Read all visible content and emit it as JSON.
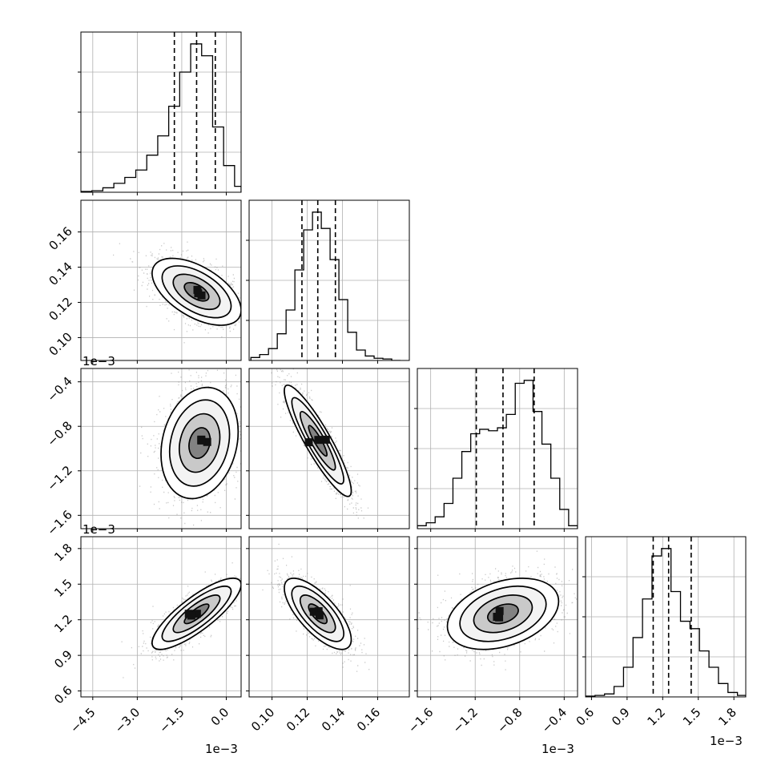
{
  "chart_data": {
    "type": "corner",
    "grid": true,
    "offset_label": "1e−3",
    "parameters": [
      {
        "ticks": [
          "−4.5",
          "−3.0",
          "−1.5",
          "0.0"
        ],
        "tick_values": [
          -4.5,
          -3.0,
          -1.5,
          0.0
        ],
        "range": [
          -4.9,
          0.5
        ]
      },
      {
        "ticks": [
          "0.10",
          "0.12",
          "0.14",
          "0.16"
        ],
        "tick_values": [
          0.1,
          0.12,
          0.14,
          0.16
        ],
        "range": [
          0.087,
          0.178
        ]
      },
      {
        "ticks": [
          "−1.6",
          "−1.2",
          "−0.8",
          "−0.4"
        ],
        "tick_values": [
          -1.6,
          -1.2,
          -0.8,
          -0.4
        ],
        "range": [
          -1.72,
          -0.28
        ]
      },
      {
        "ticks": [
          "0.6",
          "0.9",
          "1.2",
          "1.5",
          "1.8"
        ],
        "tick_values": [
          0.6,
          0.9,
          1.2,
          1.5,
          1.8
        ],
        "range": [
          0.55,
          1.9
        ]
      }
    ],
    "histograms": [
      {
        "param": 0,
        "quantiles": [
          -1.75,
          -1.0,
          -0.37
        ],
        "bins": [
          -4.9,
          -4.53,
          -4.16,
          -3.79,
          -3.42,
          -3.05,
          -2.68,
          -2.31,
          -1.94,
          -1.57,
          -1.2,
          -0.83,
          -0.46,
          -0.09,
          0.28,
          0.5
        ],
        "counts": [
          0.005,
          0.01,
          0.03,
          0.06,
          0.1,
          0.15,
          0.25,
          0.38,
          0.58,
          0.81,
          1.0,
          0.92,
          0.44,
          0.18,
          0.04
        ]
      },
      {
        "param": 1,
        "quantiles": [
          0.117,
          0.126,
          0.136
        ],
        "bins": [
          0.088,
          0.093,
          0.098,
          0.103,
          0.108,
          0.113,
          0.118,
          0.123,
          0.128,
          0.133,
          0.138,
          0.143,
          0.148,
          0.153,
          0.158,
          0.163,
          0.168,
          0.173
        ],
        "counts": [
          0.02,
          0.04,
          0.08,
          0.18,
          0.34,
          0.61,
          0.88,
          1.0,
          0.89,
          0.68,
          0.41,
          0.19,
          0.07,
          0.03,
          0.015,
          0.01,
          0.0
        ]
      },
      {
        "param": 2,
        "quantiles": [
          -1.19,
          -0.95,
          -0.67
        ],
        "bins": [
          -1.72,
          -1.64,
          -1.56,
          -1.48,
          -1.4,
          -1.32,
          -1.24,
          -1.16,
          -1.08,
          -1.0,
          -0.92,
          -0.84,
          -0.76,
          -0.68,
          -0.6,
          -0.52,
          -0.44,
          -0.36,
          -0.28
        ],
        "counts": [
          0.02,
          0.04,
          0.08,
          0.17,
          0.34,
          0.52,
          0.64,
          0.67,
          0.66,
          0.68,
          0.77,
          0.98,
          1.0,
          0.79,
          0.57,
          0.34,
          0.13,
          0.02
        ]
      },
      {
        "param": 3,
        "quantiles": [
          1.12,
          1.25,
          1.44
        ],
        "bins": [
          0.55,
          0.63,
          0.71,
          0.79,
          0.87,
          0.95,
          1.03,
          1.11,
          1.19,
          1.27,
          1.35,
          1.43,
          1.51,
          1.59,
          1.67,
          1.75,
          1.83,
          1.9
        ],
        "counts": [
          0.005,
          0.01,
          0.02,
          0.07,
          0.2,
          0.4,
          0.66,
          0.95,
          1.0,
          0.71,
          0.51,
          0.46,
          0.31,
          0.2,
          0.09,
          0.03,
          0.01
        ]
      }
    ],
    "pairs": [
      {
        "row": 1,
        "col": 0,
        "mean": [
          -1.0,
          0.126
        ],
        "sd": [
          0.75,
          0.0095
        ],
        "rho": -0.55
      },
      {
        "row": 2,
        "col": 0,
        "mean": [
          -0.9,
          -0.95
        ],
        "sd": [
          0.65,
          0.25
        ],
        "rho": 0.2
      },
      {
        "row": 2,
        "col": 1,
        "mean": [
          0.126,
          -0.93
        ],
        "sd": [
          0.0095,
          0.25
        ],
        "rho": -0.9
      },
      {
        "row": 3,
        "col": 0,
        "mean": [
          -1.0,
          1.25
        ],
        "sd": [
          0.75,
          0.15
        ],
        "rho": 0.82
      },
      {
        "row": 3,
        "col": 1,
        "mean": [
          0.126,
          1.25
        ],
        "sd": [
          0.0095,
          0.15
        ],
        "rho": -0.72
      },
      {
        "row": 3,
        "col": 2,
        "mean": [
          -0.95,
          1.25
        ],
        "sd": [
          0.25,
          0.15
        ],
        "rho": 0.35
      }
    ]
  }
}
